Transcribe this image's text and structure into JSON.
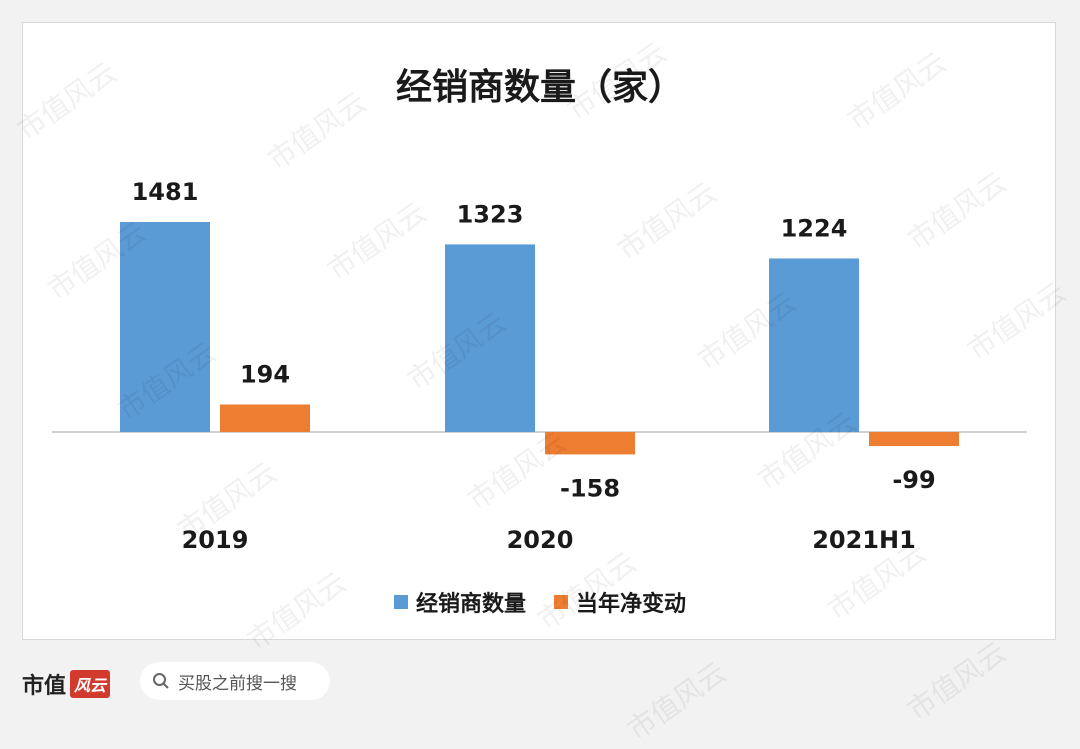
{
  "watermark": "市值风云",
  "chart_data": {
    "type": "bar",
    "title": "经销商数量（家）",
    "categories": [
      "2019",
      "2020",
      "2021H1"
    ],
    "series": [
      {
        "name": "经销商数量",
        "values": [
          1481,
          1323,
          1224
        ],
        "color": "#5b9bd5"
      },
      {
        "name": "当年净变动",
        "values": [
          194,
          -158,
          -99
        ],
        "color": "#ed7d31"
      }
    ],
    "ylim": [
      -300,
      1650
    ],
    "grid": false,
    "legend": "bottom"
  },
  "footer": {
    "brand_text": "市值",
    "brand_mark": "风云",
    "search_placeholder": "买股之前搜一搜"
  }
}
